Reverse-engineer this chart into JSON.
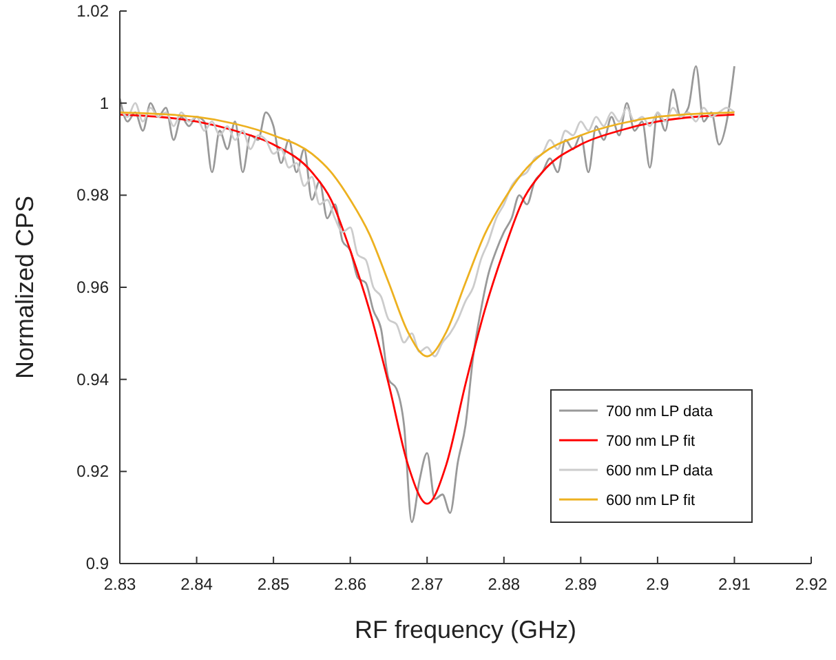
{
  "chart_data": {
    "type": "line",
    "xlabel": "RF frequency (GHz)",
    "ylabel": "Normalized CPS",
    "xlim": [
      2.83,
      2.92
    ],
    "xticks": [
      2.83,
      2.84,
      2.85,
      2.86,
      2.87,
      2.88,
      2.89,
      2.9,
      2.91,
      2.92
    ],
    "ylim": [
      0.9,
      1.02
    ],
    "yticks": [
      0.9,
      0.92,
      0.94,
      0.96,
      0.98,
      1,
      1.02
    ],
    "grid": false,
    "legend": "bottom right",
    "marker": "none",
    "line_style": "solid",
    "x": [
      2.83,
      2.831,
      2.832,
      2.833,
      2.834,
      2.835,
      2.836,
      2.837,
      2.838,
      2.839,
      2.84,
      2.841,
      2.842,
      2.843,
      2.844,
      2.845,
      2.846,
      2.847,
      2.848,
      2.849,
      2.85,
      2.851,
      2.852,
      2.853,
      2.854,
      2.855,
      2.856,
      2.857,
      2.858,
      2.859,
      2.86,
      2.861,
      2.862,
      2.863,
      2.864,
      2.865,
      2.866,
      2.867,
      2.868,
      2.869,
      2.87,
      2.871,
      2.872,
      2.873,
      2.874,
      2.875,
      2.876,
      2.877,
      2.878,
      2.879,
      2.88,
      2.881,
      2.882,
      2.883,
      2.884,
      2.885,
      2.886,
      2.887,
      2.888,
      2.889,
      2.89,
      2.891,
      2.892,
      2.893,
      2.894,
      2.895,
      2.896,
      2.897,
      2.898,
      2.899,
      2.9,
      2.901,
      2.902,
      2.903,
      2.904,
      2.905,
      2.906,
      2.907,
      2.908,
      2.909,
      2.91
    ],
    "series": [
      {
        "name": "700 nm LP data",
        "color": "#999999",
        "values": [
          1.001,
          0.996,
          0.998,
          0.994,
          1.0,
          0.997,
          0.999,
          0.992,
          0.997,
          0.995,
          0.997,
          0.996,
          0.985,
          0.994,
          0.99,
          0.996,
          0.985,
          0.993,
          0.992,
          0.998,
          0.995,
          0.987,
          0.992,
          0.985,
          0.99,
          0.979,
          0.983,
          0.975,
          0.978,
          0.97,
          0.968,
          0.962,
          0.961,
          0.955,
          0.951,
          0.94,
          0.938,
          0.93,
          0.909,
          0.918,
          0.924,
          0.914,
          0.915,
          0.911,
          0.922,
          0.93,
          0.945,
          0.955,
          0.963,
          0.968,
          0.972,
          0.975,
          0.98,
          0.978,
          0.983,
          0.985,
          0.988,
          0.985,
          0.992,
          0.99,
          0.993,
          0.985,
          0.995,
          0.992,
          0.997,
          0.993,
          1.0,
          0.994,
          0.996,
          0.986,
          0.998,
          0.994,
          1.003,
          0.997,
          0.999,
          1.008,
          0.996,
          0.998,
          0.991,
          0.996,
          1.008
        ]
      },
      {
        "name": "700 nm LP fit",
        "color": "#ff0000",
        "x": [
          2.83,
          2.84,
          2.845,
          2.85,
          2.855,
          2.8575,
          2.86,
          2.8625,
          2.865,
          2.8675,
          2.87,
          2.8725,
          2.875,
          2.8775,
          2.88,
          2.8825,
          2.885,
          2.89,
          2.895,
          2.9,
          2.91
        ],
        "values": [
          0.9975,
          0.996,
          0.994,
          0.991,
          0.985,
          0.979,
          0.968,
          0.955,
          0.939,
          0.9215,
          0.913,
          0.9215,
          0.939,
          0.955,
          0.968,
          0.979,
          0.985,
          0.991,
          0.994,
          0.996,
          0.9975
        ]
      },
      {
        "name": "600 nm LP data",
        "color": "#cccccc",
        "values": [
          0.999,
          0.997,
          1.0,
          0.996,
          0.999,
          0.997,
          0.998,
          0.995,
          0.998,
          0.996,
          0.997,
          0.994,
          0.996,
          0.993,
          0.995,
          0.992,
          0.994,
          0.99,
          0.993,
          0.992,
          0.989,
          0.99,
          0.986,
          0.987,
          0.982,
          0.984,
          0.978,
          0.979,
          0.975,
          0.972,
          0.973,
          0.967,
          0.966,
          0.96,
          0.958,
          0.953,
          0.952,
          0.948,
          0.95,
          0.946,
          0.947,
          0.945,
          0.948,
          0.95,
          0.953,
          0.957,
          0.96,
          0.966,
          0.97,
          0.975,
          0.978,
          0.982,
          0.984,
          0.985,
          0.988,
          0.989,
          0.992,
          0.99,
          0.994,
          0.993,
          0.996,
          0.994,
          0.997,
          0.995,
          0.998,
          0.996,
          0.999,
          0.996,
          0.997,
          0.995,
          0.998,
          0.996,
          0.999,
          0.997,
          0.998,
          0.996,
          0.999,
          0.997,
          0.998,
          0.999,
          0.998
        ]
      },
      {
        "name": "600 nm LP fit",
        "color": "#edb120",
        "x": [
          2.83,
          2.84,
          2.845,
          2.85,
          2.855,
          2.8575,
          2.86,
          2.8625,
          2.865,
          2.8675,
          2.87,
          2.8725,
          2.875,
          2.8775,
          2.88,
          2.8825,
          2.885,
          2.89,
          2.895,
          2.9,
          2.91
        ],
        "values": [
          0.998,
          0.997,
          0.9955,
          0.993,
          0.989,
          0.985,
          0.979,
          0.9715,
          0.961,
          0.9503,
          0.945,
          0.9503,
          0.961,
          0.9715,
          0.979,
          0.985,
          0.989,
          0.993,
          0.9955,
          0.997,
          0.998
        ]
      }
    ]
  }
}
